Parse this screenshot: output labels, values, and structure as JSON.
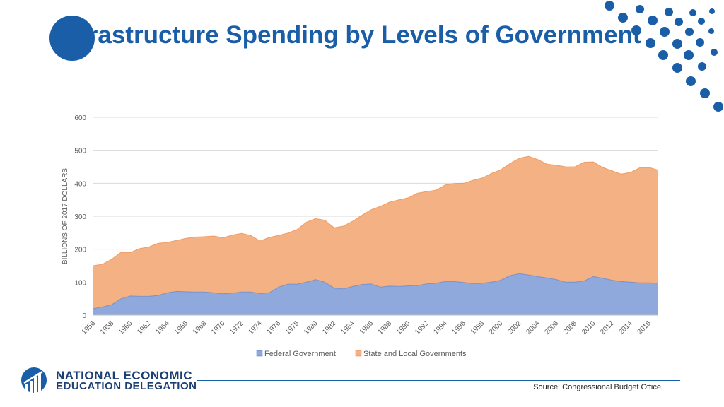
{
  "slide": {
    "title": "Infrastructure Spending by Levels of Government",
    "source": "Source: Congressional Budget Office",
    "logo": {
      "line1": "NATIONAL ECONOMIC",
      "line2": "EDUCATION DELEGATION"
    }
  },
  "colors": {
    "brand": "#1a5ea8",
    "federal_fill": "#8fa9dc",
    "federal_line": "#4472c4",
    "state_fill": "#f4b183",
    "state_line": "#ed7d31"
  },
  "chart_data": {
    "type": "area",
    "stacked": true,
    "ylabel": "BILLIONS OF 2017 DOLLARS",
    "xlabel": "",
    "ylim": [
      0,
      600
    ],
    "yticks": [
      0,
      100,
      200,
      300,
      400,
      500,
      600
    ],
    "grid": true,
    "legend": "bottom",
    "x": [
      1956,
      1957,
      1958,
      1959,
      1960,
      1961,
      1962,
      1963,
      1964,
      1965,
      1966,
      1967,
      1968,
      1969,
      1970,
      1971,
      1972,
      1973,
      1974,
      1975,
      1976,
      1977,
      1978,
      1979,
      1980,
      1981,
      1982,
      1983,
      1984,
      1985,
      1986,
      1987,
      1988,
      1989,
      1990,
      1991,
      1992,
      1993,
      1994,
      1995,
      1996,
      1997,
      1998,
      1999,
      2000,
      2001,
      2002,
      2003,
      2004,
      2005,
      2006,
      2007,
      2008,
      2009,
      2010,
      2011,
      2012,
      2013,
      2014,
      2015,
      2016,
      2017
    ],
    "xtick_labels": [
      "1956",
      "1958",
      "1960",
      "1962",
      "1964",
      "1966",
      "1968",
      "1970",
      "1972",
      "1974",
      "1976",
      "1978",
      "1980",
      "1982",
      "1984",
      "1986",
      "1988",
      "1990",
      "1992",
      "1994",
      "1996",
      "1998",
      "2000",
      "2002",
      "2004",
      "2006",
      "2008",
      "2010",
      "2012",
      "2014",
      "2016"
    ],
    "series": [
      {
        "name": "Federal Government",
        "values": [
          20,
          25,
          32,
          50,
          58,
          57,
          57,
          60,
          68,
          72,
          71,
          70,
          70,
          68,
          65,
          67,
          70,
          70,
          66,
          68,
          85,
          94,
          94,
          100,
          108,
          100,
          82,
          80,
          87,
          93,
          95,
          85,
          88,
          87,
          89,
          90,
          95,
          97,
          102,
          102,
          99,
          96,
          97,
          100,
          106,
          120,
          126,
          122,
          117,
          113,
          108,
          100,
          100,
          104,
          117,
          112,
          106,
          102,
          100,
          98,
          98,
          97
        ]
      },
      {
        "name": "State and Local Governments",
        "values": [
          130,
          130,
          138,
          141,
          132,
          145,
          150,
          158,
          153,
          155,
          162,
          167,
          168,
          172,
          170,
          176,
          178,
          172,
          159,
          168,
          157,
          155,
          166,
          182,
          185,
          188,
          183,
          190,
          198,
          210,
          225,
          245,
          255,
          263,
          267,
          280,
          280,
          282,
          293,
          297,
          301,
          313,
          319,
          330,
          335,
          340,
          350,
          360,
          355,
          345,
          347,
          350,
          350,
          360,
          348,
          336,
          332,
          326,
          333,
          349,
          350,
          343
        ]
      }
    ]
  }
}
